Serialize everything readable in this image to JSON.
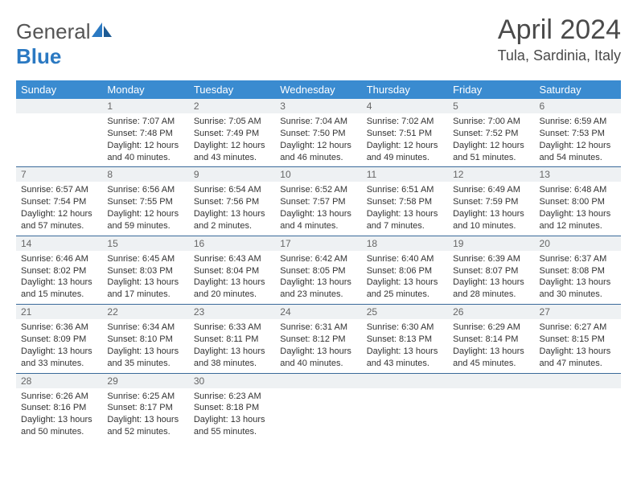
{
  "brand": {
    "part1": "General",
    "part2": "Blue"
  },
  "title": "April 2024",
  "location": "Tula, Sardinia, Italy",
  "colors": {
    "header_bg": "#3a8bd0",
    "header_text": "#ffffff",
    "daynum_bg": "#eef1f3",
    "daynum_text": "#666666",
    "row_border": "#3a6a9a",
    "brand_blue": "#2b79c2",
    "text": "#333333",
    "title_text": "#4a4a4a",
    "background": "#ffffff"
  },
  "typography": {
    "title_fontsize": 34,
    "location_fontsize": 18,
    "header_fontsize": 13,
    "daynum_fontsize": 12,
    "body_fontsize": 11
  },
  "calendar": {
    "columns": [
      "Sunday",
      "Monday",
      "Tuesday",
      "Wednesday",
      "Thursday",
      "Friday",
      "Saturday"
    ],
    "weeks": [
      [
        {
          "n": "",
          "sunrise": "",
          "sunset": "",
          "daylight": ""
        },
        {
          "n": "1",
          "sunrise": "Sunrise: 7:07 AM",
          "sunset": "Sunset: 7:48 PM",
          "daylight": "Daylight: 12 hours and 40 minutes."
        },
        {
          "n": "2",
          "sunrise": "Sunrise: 7:05 AM",
          "sunset": "Sunset: 7:49 PM",
          "daylight": "Daylight: 12 hours and 43 minutes."
        },
        {
          "n": "3",
          "sunrise": "Sunrise: 7:04 AM",
          "sunset": "Sunset: 7:50 PM",
          "daylight": "Daylight: 12 hours and 46 minutes."
        },
        {
          "n": "4",
          "sunrise": "Sunrise: 7:02 AM",
          "sunset": "Sunset: 7:51 PM",
          "daylight": "Daylight: 12 hours and 49 minutes."
        },
        {
          "n": "5",
          "sunrise": "Sunrise: 7:00 AM",
          "sunset": "Sunset: 7:52 PM",
          "daylight": "Daylight: 12 hours and 51 minutes."
        },
        {
          "n": "6",
          "sunrise": "Sunrise: 6:59 AM",
          "sunset": "Sunset: 7:53 PM",
          "daylight": "Daylight: 12 hours and 54 minutes."
        }
      ],
      [
        {
          "n": "7",
          "sunrise": "Sunrise: 6:57 AM",
          "sunset": "Sunset: 7:54 PM",
          "daylight": "Daylight: 12 hours and 57 minutes."
        },
        {
          "n": "8",
          "sunrise": "Sunrise: 6:56 AM",
          "sunset": "Sunset: 7:55 PM",
          "daylight": "Daylight: 12 hours and 59 minutes."
        },
        {
          "n": "9",
          "sunrise": "Sunrise: 6:54 AM",
          "sunset": "Sunset: 7:56 PM",
          "daylight": "Daylight: 13 hours and 2 minutes."
        },
        {
          "n": "10",
          "sunrise": "Sunrise: 6:52 AM",
          "sunset": "Sunset: 7:57 PM",
          "daylight": "Daylight: 13 hours and 4 minutes."
        },
        {
          "n": "11",
          "sunrise": "Sunrise: 6:51 AM",
          "sunset": "Sunset: 7:58 PM",
          "daylight": "Daylight: 13 hours and 7 minutes."
        },
        {
          "n": "12",
          "sunrise": "Sunrise: 6:49 AM",
          "sunset": "Sunset: 7:59 PM",
          "daylight": "Daylight: 13 hours and 10 minutes."
        },
        {
          "n": "13",
          "sunrise": "Sunrise: 6:48 AM",
          "sunset": "Sunset: 8:00 PM",
          "daylight": "Daylight: 13 hours and 12 minutes."
        }
      ],
      [
        {
          "n": "14",
          "sunrise": "Sunrise: 6:46 AM",
          "sunset": "Sunset: 8:02 PM",
          "daylight": "Daylight: 13 hours and 15 minutes."
        },
        {
          "n": "15",
          "sunrise": "Sunrise: 6:45 AM",
          "sunset": "Sunset: 8:03 PM",
          "daylight": "Daylight: 13 hours and 17 minutes."
        },
        {
          "n": "16",
          "sunrise": "Sunrise: 6:43 AM",
          "sunset": "Sunset: 8:04 PM",
          "daylight": "Daylight: 13 hours and 20 minutes."
        },
        {
          "n": "17",
          "sunrise": "Sunrise: 6:42 AM",
          "sunset": "Sunset: 8:05 PM",
          "daylight": "Daylight: 13 hours and 23 minutes."
        },
        {
          "n": "18",
          "sunrise": "Sunrise: 6:40 AM",
          "sunset": "Sunset: 8:06 PM",
          "daylight": "Daylight: 13 hours and 25 minutes."
        },
        {
          "n": "19",
          "sunrise": "Sunrise: 6:39 AM",
          "sunset": "Sunset: 8:07 PM",
          "daylight": "Daylight: 13 hours and 28 minutes."
        },
        {
          "n": "20",
          "sunrise": "Sunrise: 6:37 AM",
          "sunset": "Sunset: 8:08 PM",
          "daylight": "Daylight: 13 hours and 30 minutes."
        }
      ],
      [
        {
          "n": "21",
          "sunrise": "Sunrise: 6:36 AM",
          "sunset": "Sunset: 8:09 PM",
          "daylight": "Daylight: 13 hours and 33 minutes."
        },
        {
          "n": "22",
          "sunrise": "Sunrise: 6:34 AM",
          "sunset": "Sunset: 8:10 PM",
          "daylight": "Daylight: 13 hours and 35 minutes."
        },
        {
          "n": "23",
          "sunrise": "Sunrise: 6:33 AM",
          "sunset": "Sunset: 8:11 PM",
          "daylight": "Daylight: 13 hours and 38 minutes."
        },
        {
          "n": "24",
          "sunrise": "Sunrise: 6:31 AM",
          "sunset": "Sunset: 8:12 PM",
          "daylight": "Daylight: 13 hours and 40 minutes."
        },
        {
          "n": "25",
          "sunrise": "Sunrise: 6:30 AM",
          "sunset": "Sunset: 8:13 PM",
          "daylight": "Daylight: 13 hours and 43 minutes."
        },
        {
          "n": "26",
          "sunrise": "Sunrise: 6:29 AM",
          "sunset": "Sunset: 8:14 PM",
          "daylight": "Daylight: 13 hours and 45 minutes."
        },
        {
          "n": "27",
          "sunrise": "Sunrise: 6:27 AM",
          "sunset": "Sunset: 8:15 PM",
          "daylight": "Daylight: 13 hours and 47 minutes."
        }
      ],
      [
        {
          "n": "28",
          "sunrise": "Sunrise: 6:26 AM",
          "sunset": "Sunset: 8:16 PM",
          "daylight": "Daylight: 13 hours and 50 minutes."
        },
        {
          "n": "29",
          "sunrise": "Sunrise: 6:25 AM",
          "sunset": "Sunset: 8:17 PM",
          "daylight": "Daylight: 13 hours and 52 minutes."
        },
        {
          "n": "30",
          "sunrise": "Sunrise: 6:23 AM",
          "sunset": "Sunset: 8:18 PM",
          "daylight": "Daylight: 13 hours and 55 minutes."
        },
        {
          "n": "",
          "sunrise": "",
          "sunset": "",
          "daylight": ""
        },
        {
          "n": "",
          "sunrise": "",
          "sunset": "",
          "daylight": ""
        },
        {
          "n": "",
          "sunrise": "",
          "sunset": "",
          "daylight": ""
        },
        {
          "n": "",
          "sunrise": "",
          "sunset": "",
          "daylight": ""
        }
      ]
    ]
  }
}
